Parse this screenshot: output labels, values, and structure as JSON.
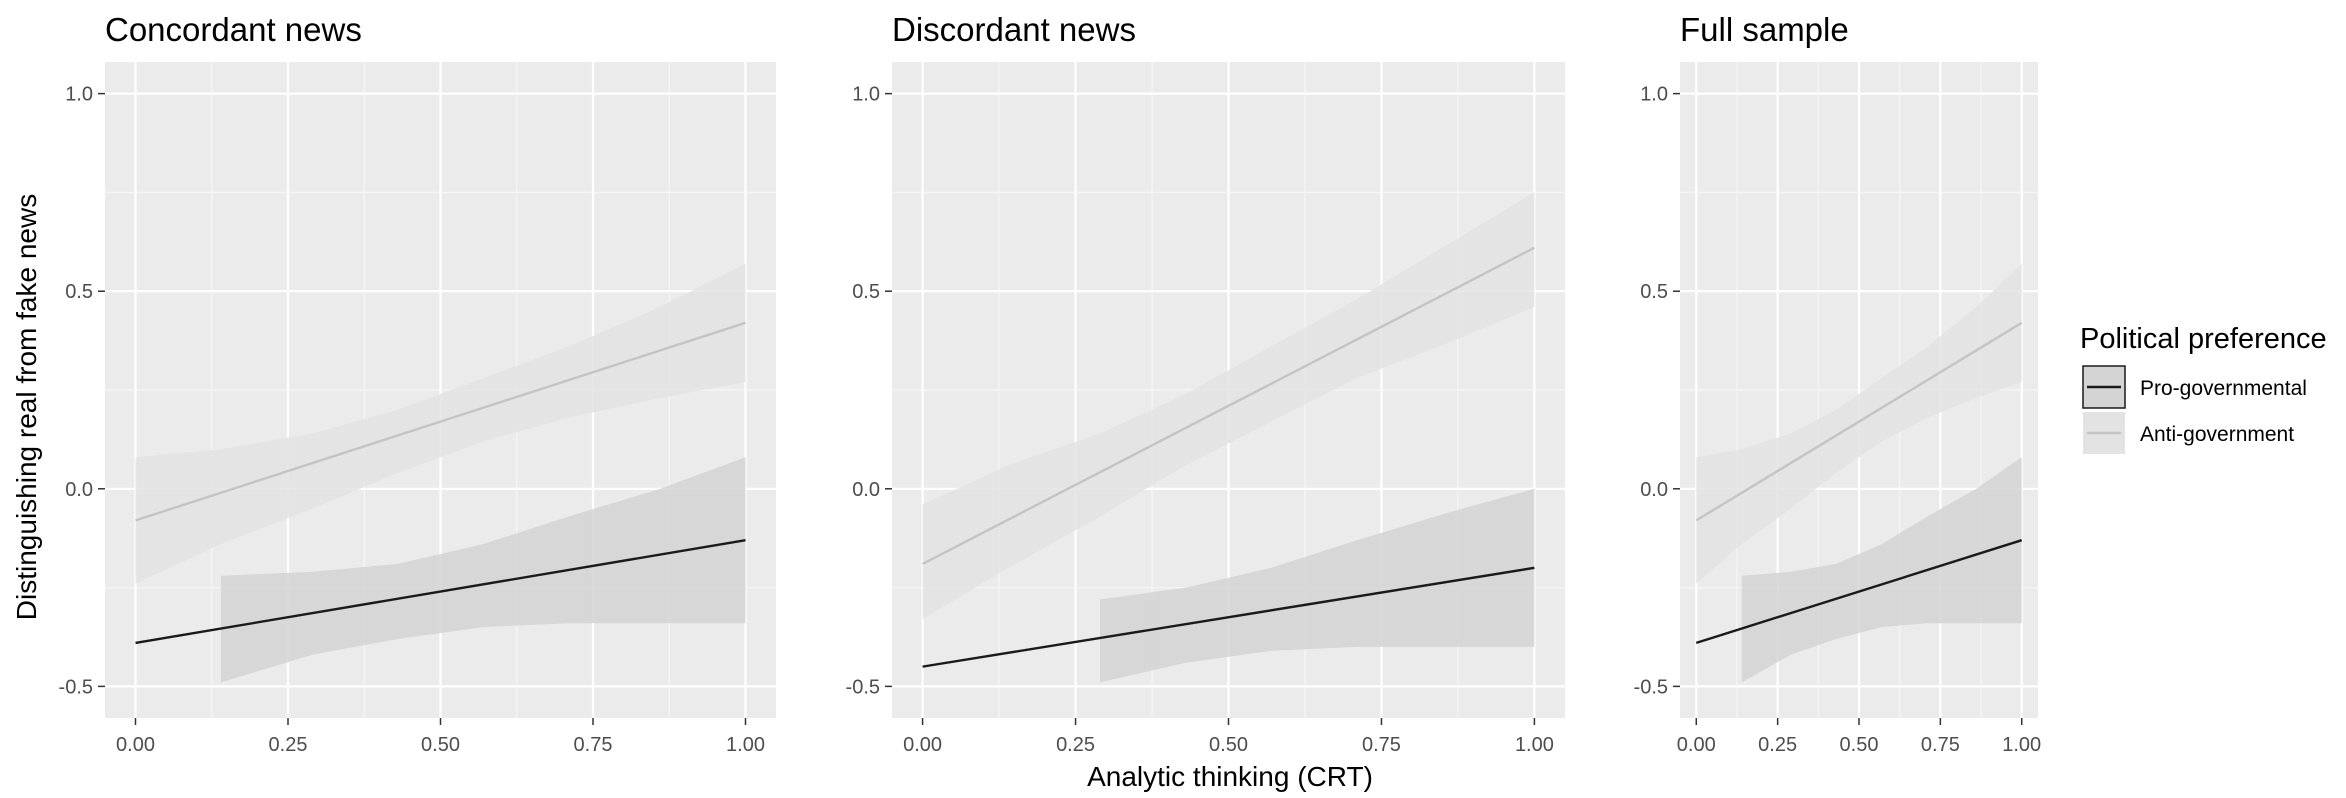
{
  "chart_data": {
    "type": "line",
    "x_axis_title": "Analytic thinking (CRT)",
    "y_axis_title": "Distinguishing real from fake news",
    "legend": {
      "title": "Political preference",
      "position": "right",
      "entries": [
        {
          "label": "Pro-governmental",
          "line_color": "#1a1a1a",
          "band_color": "#d4d4d4"
        },
        {
          "label": "Anti-government",
          "line_color": "#c4c4c4",
          "band_color": "#e3e3e3"
        }
      ]
    },
    "y_ticks": [
      {
        "value": -0.5,
        "label": "-0.5"
      },
      {
        "value": 0.0,
        "label": "0.0"
      },
      {
        "value": 0.5,
        "label": "0.5"
      },
      {
        "value": 1.0,
        "label": "1.0"
      }
    ],
    "x_ticks": [
      {
        "value": 0.0,
        "label": "0.00"
      },
      {
        "value": 0.25,
        "label": "0.25"
      },
      {
        "value": 0.5,
        "label": "0.50"
      },
      {
        "value": 0.75,
        "label": "0.75"
      },
      {
        "value": 1.0,
        "label": "1.00"
      }
    ],
    "xlim": [
      -0.05,
      1.05
    ],
    "ylim": [
      -0.58,
      1.08
    ],
    "grid": true,
    "panels": [
      {
        "title": "Concordant news",
        "series": [
          {
            "name": "Anti-government",
            "line": [
              [
                0.0,
                -0.08
              ],
              [
                1.0,
                0.42
              ]
            ],
            "band": {
              "x": [
                0.0,
                0.14,
                0.29,
                0.43,
                0.57,
                0.71,
                0.86,
                1.0
              ],
              "lower": [
                -0.24,
                -0.14,
                -0.05,
                0.04,
                0.12,
                0.18,
                0.23,
                0.27
              ],
              "upper": [
                0.08,
                0.1,
                0.14,
                0.2,
                0.28,
                0.36,
                0.46,
                0.57
              ]
            }
          },
          {
            "name": "Pro-governmental",
            "line": [
              [
                0.0,
                -0.39
              ],
              [
                1.0,
                -0.13
              ]
            ],
            "band": {
              "x": [
                0.14,
                0.29,
                0.43,
                0.57,
                0.71,
                0.86,
                1.0
              ],
              "lower": [
                -0.49,
                -0.42,
                -0.38,
                -0.35,
                -0.34,
                -0.34,
                -0.34
              ],
              "upper": [
                -0.22,
                -0.21,
                -0.19,
                -0.14,
                -0.07,
                0.0,
                0.08
              ]
            }
          }
        ]
      },
      {
        "title": "Discordant news",
        "series": [
          {
            "name": "Anti-government",
            "line": [
              [
                0.0,
                -0.19
              ],
              [
                1.0,
                0.61
              ]
            ],
            "band": {
              "x": [
                0.0,
                0.14,
                0.29,
                0.43,
                0.57,
                0.71,
                0.86,
                1.0
              ],
              "lower": [
                -0.33,
                -0.2,
                -0.07,
                0.06,
                0.17,
                0.28,
                0.37,
                0.46
              ],
              "upper": [
                -0.04,
                0.06,
                0.14,
                0.24,
                0.36,
                0.48,
                0.62,
                0.75
              ]
            }
          },
          {
            "name": "Pro-governmental",
            "line": [
              [
                0.0,
                -0.45
              ],
              [
                1.0,
                -0.2
              ]
            ],
            "band": {
              "x": [
                0.29,
                0.43,
                0.57,
                0.71,
                0.86,
                1.0
              ],
              "lower": [
                -0.49,
                -0.44,
                -0.41,
                -0.4,
                -0.4,
                -0.4
              ],
              "upper": [
                -0.28,
                -0.25,
                -0.2,
                -0.13,
                -0.06,
                0.0
              ]
            }
          }
        ]
      },
      {
        "title": "Full sample",
        "series": [
          {
            "name": "Anti-government",
            "line": [
              [
                0.0,
                -0.08
              ],
              [
                1.0,
                0.42
              ]
            ],
            "band": {
              "x": [
                0.0,
                0.14,
                0.29,
                0.43,
                0.57,
                0.71,
                0.86,
                1.0
              ],
              "lower": [
                -0.24,
                -0.14,
                -0.05,
                0.04,
                0.12,
                0.18,
                0.23,
                0.27
              ],
              "upper": [
                0.08,
                0.1,
                0.14,
                0.2,
                0.28,
                0.36,
                0.46,
                0.57
              ]
            }
          },
          {
            "name": "Pro-governmental",
            "line": [
              [
                0.0,
                -0.39
              ],
              [
                1.0,
                -0.13
              ]
            ],
            "band": {
              "x": [
                0.14,
                0.29,
                0.43,
                0.57,
                0.71,
                0.86,
                1.0
              ],
              "lower": [
                -0.49,
                -0.42,
                -0.38,
                -0.35,
                -0.34,
                -0.34,
                -0.34
              ],
              "upper": [
                -0.22,
                -0.21,
                -0.19,
                -0.14,
                -0.07,
                0.0,
                0.08
              ]
            }
          }
        ]
      }
    ]
  }
}
